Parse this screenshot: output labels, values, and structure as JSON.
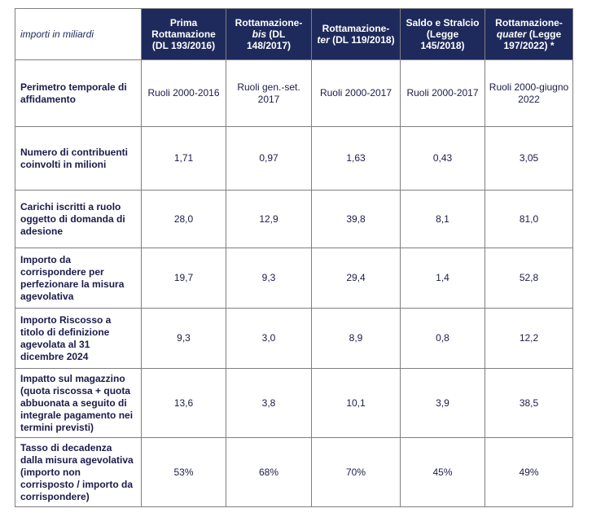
{
  "corner_label": "importi in miliardi",
  "columns": [
    {
      "line1": "Prima",
      "line2": "Rottamazione",
      "line3": "(DL 193/2016)"
    },
    {
      "prefix": "Rottamazione-",
      "italic": "bis",
      "suffix": " (DL",
      "line3": "148/2017)"
    },
    {
      "prefix": "Rottamazione-",
      "italic": "ter",
      "suffix": " (DL 119/2018)"
    },
    {
      "line1": "Saldo e Stralcio",
      "line2": "(Legge",
      "line3": "145/2018)"
    },
    {
      "prefix": "Rottamazione-",
      "italic": "quater",
      "suffix": " (Legge",
      "line3": "197/2022) *"
    }
  ],
  "rows": [
    {
      "label": "Perimetro temporale di affidamento",
      "values": [
        "Ruoli 2000-2016",
        "Ruoli gen.-set. 2017",
        "Ruoli 2000-2017",
        "Ruoli 2000-2017",
        "Ruoli 2000-giugno 2022"
      ]
    },
    {
      "label": "Numero di contribuenti coinvolti in milioni",
      "values": [
        "1,71",
        "0,97",
        "1,63",
        "0,43",
        "3,05"
      ]
    },
    {
      "label": "Carichi iscritti a ruolo oggetto di domanda di adesione",
      "values": [
        "28,0",
        "12,9",
        "39,8",
        "8,1",
        "81,0"
      ]
    },
    {
      "label": "Importo da corrispondere per perfezionare la misura agevolativa",
      "values": [
        "19,7",
        "9,3",
        "29,4",
        "1,4",
        "52,8"
      ]
    },
    {
      "label": "Importo Riscosso a titolo di definizione agevolata al 31 dicembre 2024",
      "values": [
        "9,3",
        "3,0",
        "8,9",
        "0,8",
        "12,2"
      ]
    },
    {
      "label": "Impatto sul magazzino (quota riscossa + quota abbuonata a seguito di integrale pagamento nei termini previsti)",
      "values": [
        "13,6",
        "3,8",
        "10,1",
        "3,9",
        "38,5"
      ]
    },
    {
      "label": "Tasso di decadenza dalla misura agevolativa (importo non corrisposto / importo da corrispondere)",
      "values": [
        "53%",
        "68%",
        "70%",
        "45%",
        "49%"
      ]
    }
  ]
}
